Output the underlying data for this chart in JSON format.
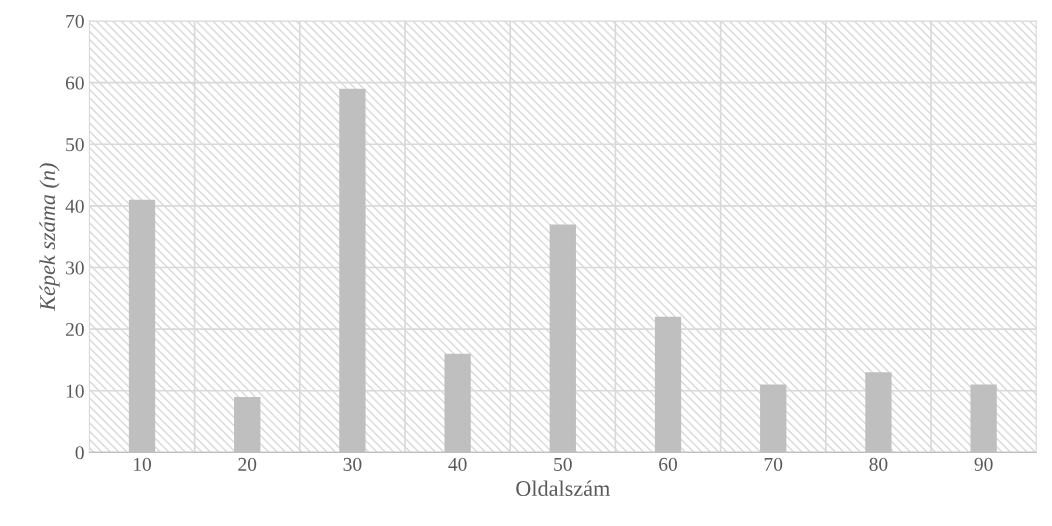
{
  "chart_data": {
    "type": "bar",
    "xlabel": "Oldalszám",
    "ylabel": "Képek száma (n)",
    "categories": [
      "10",
      "20",
      "30",
      "40",
      "50",
      "60",
      "70",
      "80",
      "90"
    ],
    "values": [
      41,
      9,
      59,
      16,
      37,
      22,
      11,
      13,
      11
    ],
    "color": "#bfbfbf",
    "ylim": [
      0,
      70
    ],
    "yticks": [
      0,
      10,
      20,
      30,
      40,
      50,
      60,
      70
    ],
    "grid": true
  }
}
